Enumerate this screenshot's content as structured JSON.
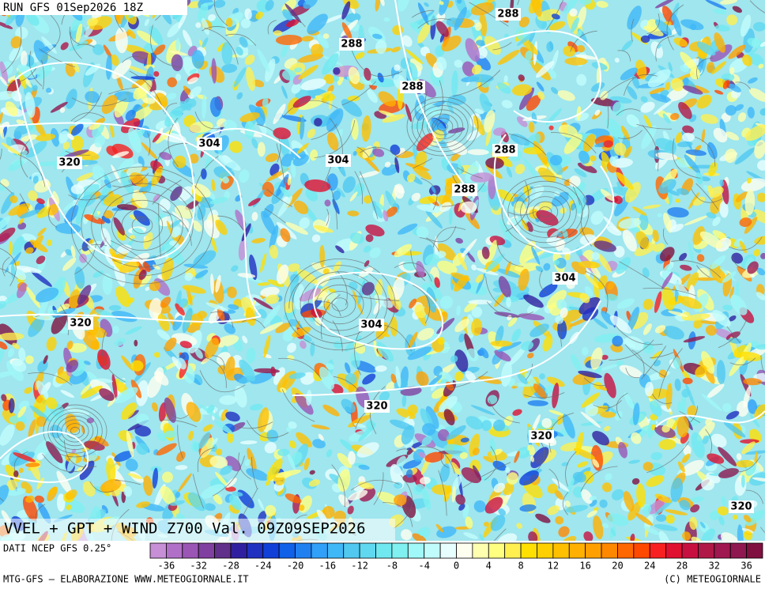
{
  "header": {
    "run": "RUN GFS 01Sep2026 18Z"
  },
  "map": {
    "contour_labels": [
      "288",
      "288",
      "288",
      "288",
      "288",
      "304",
      "304",
      "304",
      "304",
      "320",
      "320",
      "320",
      "320",
      "320"
    ],
    "title": "VVEL + GPT + WIND Z700 Val. 09Z09SEP2026"
  },
  "footer": {
    "source": "DATI NCEP GFS 0.25°",
    "credit": "MTG-GFS – ELABORAZIONE WWW.METEOGIORNALE.IT",
    "copyright": "(C) METEOGIORNALE"
  },
  "colorbar": {
    "range": [
      -38,
      38
    ],
    "ticks": [
      -36,
      -32,
      -28,
      -24,
      -20,
      -16,
      -12,
      -8,
      -4,
      0,
      4,
      8,
      12,
      16,
      20,
      24,
      28,
      32,
      36
    ],
    "colors": [
      "#c68fd6",
      "#b070c8",
      "#9a55b5",
      "#8040a0",
      "#60308a",
      "#3020a0",
      "#2030c0",
      "#1040d8",
      "#1060e8",
      "#2080f0",
      "#30a0f8",
      "#40b8f8",
      "#50c8f0",
      "#60d8f0",
      "#70e8f0",
      "#80f0f0",
      "#a0f8f8",
      "#c0fcfc",
      "#e8ffff",
      "#fffff0",
      "#ffffb0",
      "#ffff80",
      "#fff050",
      "#ffe000",
      "#ffd000",
      "#ffc000",
      "#ffb000",
      "#ffa000",
      "#ff8800",
      "#ff6800",
      "#ff4800",
      "#f82020",
      "#e01030",
      "#c81040",
      "#b01848",
      "#a01850",
      "#901850",
      "#801040"
    ]
  }
}
